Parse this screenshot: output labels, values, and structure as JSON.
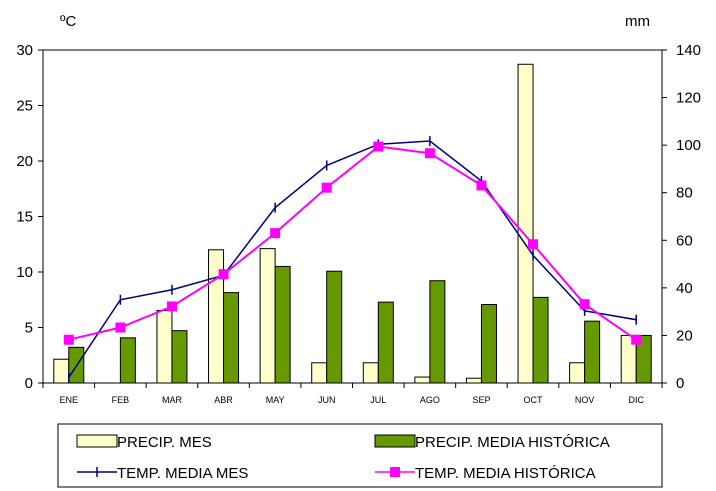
{
  "chart_data": {
    "type": "bar",
    "categories": [
      "ENE",
      "FEB",
      "MAR",
      "ABR",
      "MAY",
      "JUN",
      "JUL",
      "AGO",
      "SEP",
      "OCT",
      "NOV",
      "DIC"
    ],
    "left_axis": {
      "unit": "ºC",
      "range": [
        0,
        30
      ],
      "ticks": [
        0,
        5,
        10,
        15,
        20,
        25,
        30
      ]
    },
    "right_axis": {
      "unit": "mm",
      "range": [
        0,
        140
      ],
      "ticks": [
        0,
        20,
        40,
        60,
        80,
        100,
        120,
        140
      ]
    },
    "series": [
      {
        "name": "PRECIP. MES",
        "kind": "bar",
        "axis": "right",
        "color": "#ffffcc",
        "values": [
          10,
          0,
          30.5,
          56,
          56.5,
          8.5,
          8.5,
          2.5,
          2,
          134,
          8.5,
          20
        ]
      },
      {
        "name": "PRECIP. MEDIA HISTÓRICA",
        "kind": "bar",
        "axis": "right",
        "color": "#669900",
        "values": [
          15,
          19,
          22,
          38,
          49,
          47,
          34,
          43,
          33,
          36,
          26,
          20
        ]
      },
      {
        "name": "TEMP. MEDIA MES",
        "kind": "line",
        "marker": "plus",
        "axis": "left",
        "color": "#000080",
        "values": [
          0.5,
          7.5,
          8.4,
          9.7,
          15.8,
          19.6,
          21.5,
          21.8,
          18.2,
          11.5,
          6.5,
          5.7
        ]
      },
      {
        "name": "TEMP. MEDIA HISTÓRICA",
        "kind": "line",
        "marker": "square",
        "axis": "left",
        "color": "#ff00ff",
        "values": [
          3.9,
          5,
          6.9,
          9.8,
          13.5,
          17.6,
          21.3,
          20.7,
          17.8,
          12.5,
          7.1,
          3.9
        ]
      }
    ],
    "legend": [
      {
        "label": "PRECIP. MES"
      },
      {
        "label": "PRECIP. MEDIA HISTÓRICA"
      },
      {
        "label": "TEMP. MEDIA MES"
      },
      {
        "label": "TEMP. MEDIA HISTÓRICA"
      }
    ],
    "legend_position": "bottom",
    "grid": false
  }
}
